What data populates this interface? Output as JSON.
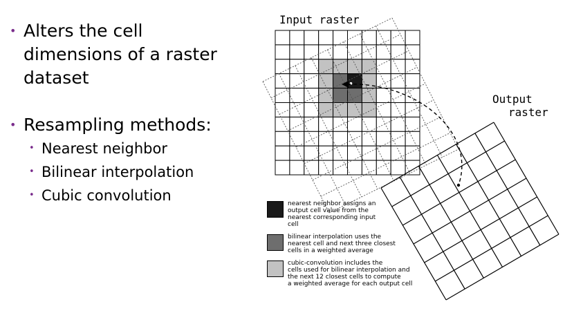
{
  "bullets": [
    {
      "text": "Alters the cell\ndimensions of a raster\ndataset"
    },
    {
      "text": "Resampling methods:"
    }
  ],
  "methods": [
    "Nearest neighbor",
    "Bilinear interpolation",
    "Cubic convolution"
  ],
  "diagram": {
    "input_label": "Input raster",
    "output_label_line1": "Output",
    "output_label_line2": "raster"
  },
  "legend": [
    {
      "color": "#1a1a1a",
      "text": "nearest neighbor assigns an\noutput cell value from the\nnearest corresponding input\ncell"
    },
    {
      "color": "#6e6e6e",
      "text": "bilinear interpolation uses the\nnearest cell and next three closest\ncells in a weighted average"
    },
    {
      "color": "#c2c2c2",
      "text": "cubic-convolution includes the\ncells used for bilinear interpolation and\nthe next 12 closest cells to compute\na weighted average for each output cell"
    }
  ]
}
